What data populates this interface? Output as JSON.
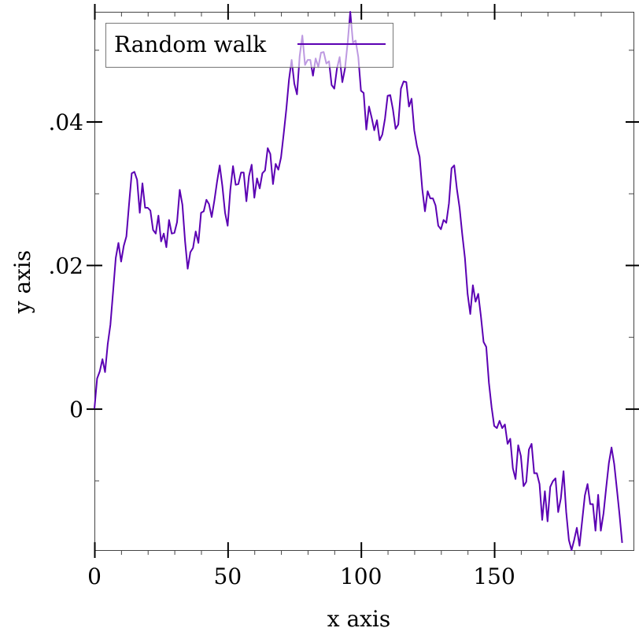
{
  "chart_data": {
    "type": "line",
    "xlabel": "x axis",
    "ylabel": "y axis",
    "xlim": [
      0,
      199
    ],
    "ylim": [
      -0.0197,
      0.0553
    ],
    "x_ticks": [
      {
        "value": 0,
        "label": "0"
      },
      {
        "value": 50,
        "label": "50"
      },
      {
        "value": 100,
        "label": "100"
      },
      {
        "value": 150,
        "label": "150"
      }
    ],
    "y_ticks": [
      {
        "value": 0,
        "label": "0"
      },
      {
        "value": 0.02,
        "label": ".02"
      },
      {
        "value": 0.04,
        "label": ".04"
      }
    ],
    "x_minor_step": 10,
    "y_minor_step": 0.01,
    "grid": false,
    "legend_position": "top-left",
    "series": [
      {
        "name": "Random walk",
        "color": "#5b00b3",
        "values": [
          0.0,
          0.0042,
          0.0052,
          0.0069,
          0.0051,
          0.009,
          0.0117,
          0.0163,
          0.021,
          0.0231,
          0.0205,
          0.0227,
          0.024,
          0.0285,
          0.0328,
          0.033,
          0.0319,
          0.0273,
          0.0314,
          0.028,
          0.028,
          0.0276,
          0.0249,
          0.0244,
          0.0269,
          0.0233,
          0.0244,
          0.0225,
          0.0263,
          0.0244,
          0.0245,
          0.026,
          0.0305,
          0.0284,
          0.0233,
          0.0195,
          0.0218,
          0.0224,
          0.0247,
          0.0231,
          0.0273,
          0.0275,
          0.0291,
          0.0285,
          0.0267,
          0.029,
          0.0316,
          0.0339,
          0.031,
          0.0273,
          0.0255,
          0.0305,
          0.0338,
          0.0312,
          0.0313,
          0.0329,
          0.0329,
          0.0289,
          0.0324,
          0.034,
          0.0294,
          0.0321,
          0.0307,
          0.0328,
          0.0332,
          0.0363,
          0.0355,
          0.0313,
          0.0341,
          0.0333,
          0.035,
          0.0383,
          0.0418,
          0.0458,
          0.0486,
          0.0453,
          0.0438,
          0.0491,
          0.052,
          0.0479,
          0.0486,
          0.0486,
          0.0464,
          0.0488,
          0.0476,
          0.0496,
          0.0497,
          0.0481,
          0.0484,
          0.0451,
          0.0446,
          0.0474,
          0.049,
          0.0455,
          0.0474,
          0.051,
          0.0553,
          0.051,
          0.0513,
          0.049,
          0.0443,
          0.044,
          0.0389,
          0.0421,
          0.0406,
          0.0388,
          0.0402,
          0.0374,
          0.0382,
          0.0404,
          0.0436,
          0.0437,
          0.0417,
          0.039,
          0.0396,
          0.0446,
          0.0456,
          0.0455,
          0.0421,
          0.0432,
          0.0388,
          0.0366,
          0.0351,
          0.0306,
          0.0275,
          0.0303,
          0.0293,
          0.0293,
          0.0283,
          0.0255,
          0.025,
          0.0263,
          0.0259,
          0.0286,
          0.0335,
          0.0339,
          0.0306,
          0.028,
          0.0243,
          0.021,
          0.016,
          0.0132,
          0.0172,
          0.0149,
          0.016,
          0.0129,
          0.0093,
          0.0086,
          0.0036,
          0.0002,
          -0.0024,
          -0.0027,
          -0.0017,
          -0.0027,
          -0.0022,
          -0.0049,
          -0.0042,
          -0.0083,
          -0.0098,
          -0.0051,
          -0.0066,
          -0.0108,
          -0.0102,
          -0.0057,
          -0.0049,
          -0.009,
          -0.009,
          -0.0105,
          -0.0155,
          -0.0115,
          -0.0157,
          -0.0109,
          -0.0101,
          -0.0097,
          -0.0144,
          -0.0125,
          -0.0087,
          -0.0144,
          -0.0183,
          -0.0197,
          -0.0183,
          -0.0166,
          -0.0191,
          -0.0156,
          -0.0121,
          -0.0105,
          -0.0133,
          -0.0133,
          -0.017,
          -0.012,
          -0.017,
          -0.0146,
          -0.011,
          -0.0076,
          -0.0054,
          -0.0077,
          -0.0111,
          -0.0147,
          -0.0187
        ]
      }
    ]
  }
}
